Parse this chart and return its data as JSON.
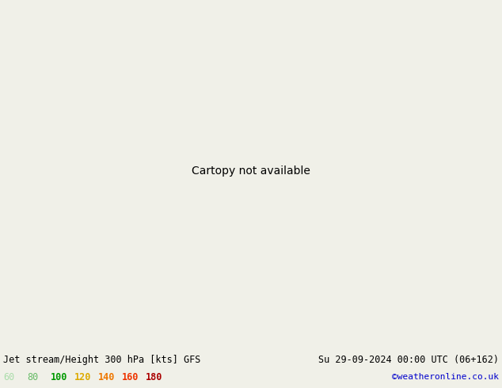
{
  "title_left": "Jet stream/Height 300 hPa [kts] GFS",
  "title_right": "Su 29-09-2024 00:00 UTC (06+162)",
  "credit": "©weatheronline.co.uk",
  "legend_values": [
    60,
    80,
    100,
    120,
    140,
    160,
    180
  ],
  "legend_colors": [
    "#aaddaa",
    "#66bb66",
    "#009900",
    "#ddaa00",
    "#ee7700",
    "#ee3300",
    "#aa0000"
  ],
  "fig_width": 6.34,
  "fig_height": 4.9,
  "dpi": 100,
  "title_fontsize": 8.5,
  "legend_fontsize": 8.5,
  "credit_fontsize": 8,
  "title_color": "#000000",
  "credit_color": "#0000cc",
  "map_extent": [
    25,
    110,
    5,
    60
  ],
  "land_color": "#c8e8a0",
  "ocean_color": "#d0d8d0",
  "border_color": "#aaaaaa",
  "contour_color": "#000000"
}
